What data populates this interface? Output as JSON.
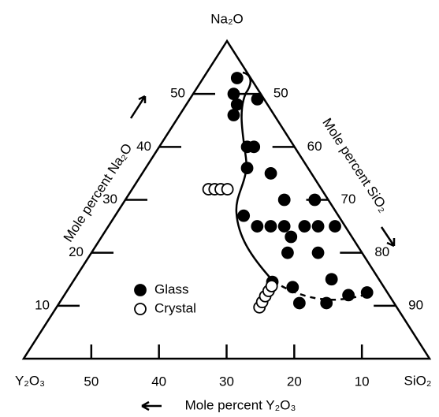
{
  "chart_data": {
    "type": "ternary",
    "vertex_labels": {
      "top": "Na₂O",
      "left": "Y₂O₃",
      "right": "SiO₂"
    },
    "axis_labels": {
      "na2o": "Mole percent Na₂O",
      "sio2": "Mole percent SiO₂",
      "y2o3": "Mole percent Y₂O₃"
    },
    "na2o_lim": [
      0,
      60
    ],
    "y2o3_lim": [
      0,
      60
    ],
    "sio2_lim": [
      40,
      100
    ],
    "na2o_ticks": [
      10,
      20,
      30,
      40,
      50
    ],
    "sio2_ticks": [
      50,
      60,
      70,
      80,
      90
    ],
    "y2o3_ticks": [
      10,
      20,
      30,
      40,
      50
    ],
    "series": [
      {
        "name": "Glass",
        "marker": "filled",
        "color": "#000000",
        "na2o": [
          53,
          50,
          48,
          49,
          46,
          40,
          40,
          36,
          35,
          30,
          30,
          27,
          25,
          25,
          25,
          25,
          25,
          25,
          23,
          20,
          20,
          14.5,
          13.5,
          15,
          10.5,
          10.5,
          12,
          12.5
        ],
        "y2o3": [
          2,
          4,
          4.5,
          1,
          6,
          7,
          6,
          9,
          6,
          6.5,
          2,
          14,
          13,
          11,
          9,
          6,
          4,
          1.5,
          9,
          6.5,
          11,
          16,
          13.5,
          7,
          14,
          10,
          6,
          3
        ]
      },
      {
        "name": "Crystal",
        "marker": "open",
        "color": "#000000",
        "na2o": [
          32,
          32,
          32,
          32,
          9.7,
          10.7,
          11.8,
          12.8,
          13.7
        ],
        "y2o3": [
          16.7,
          15.8,
          14.9,
          13.9,
          20.3,
          19.4,
          18.4,
          17.4,
          16.5
        ]
      }
    ],
    "legend": "lower-left"
  }
}
